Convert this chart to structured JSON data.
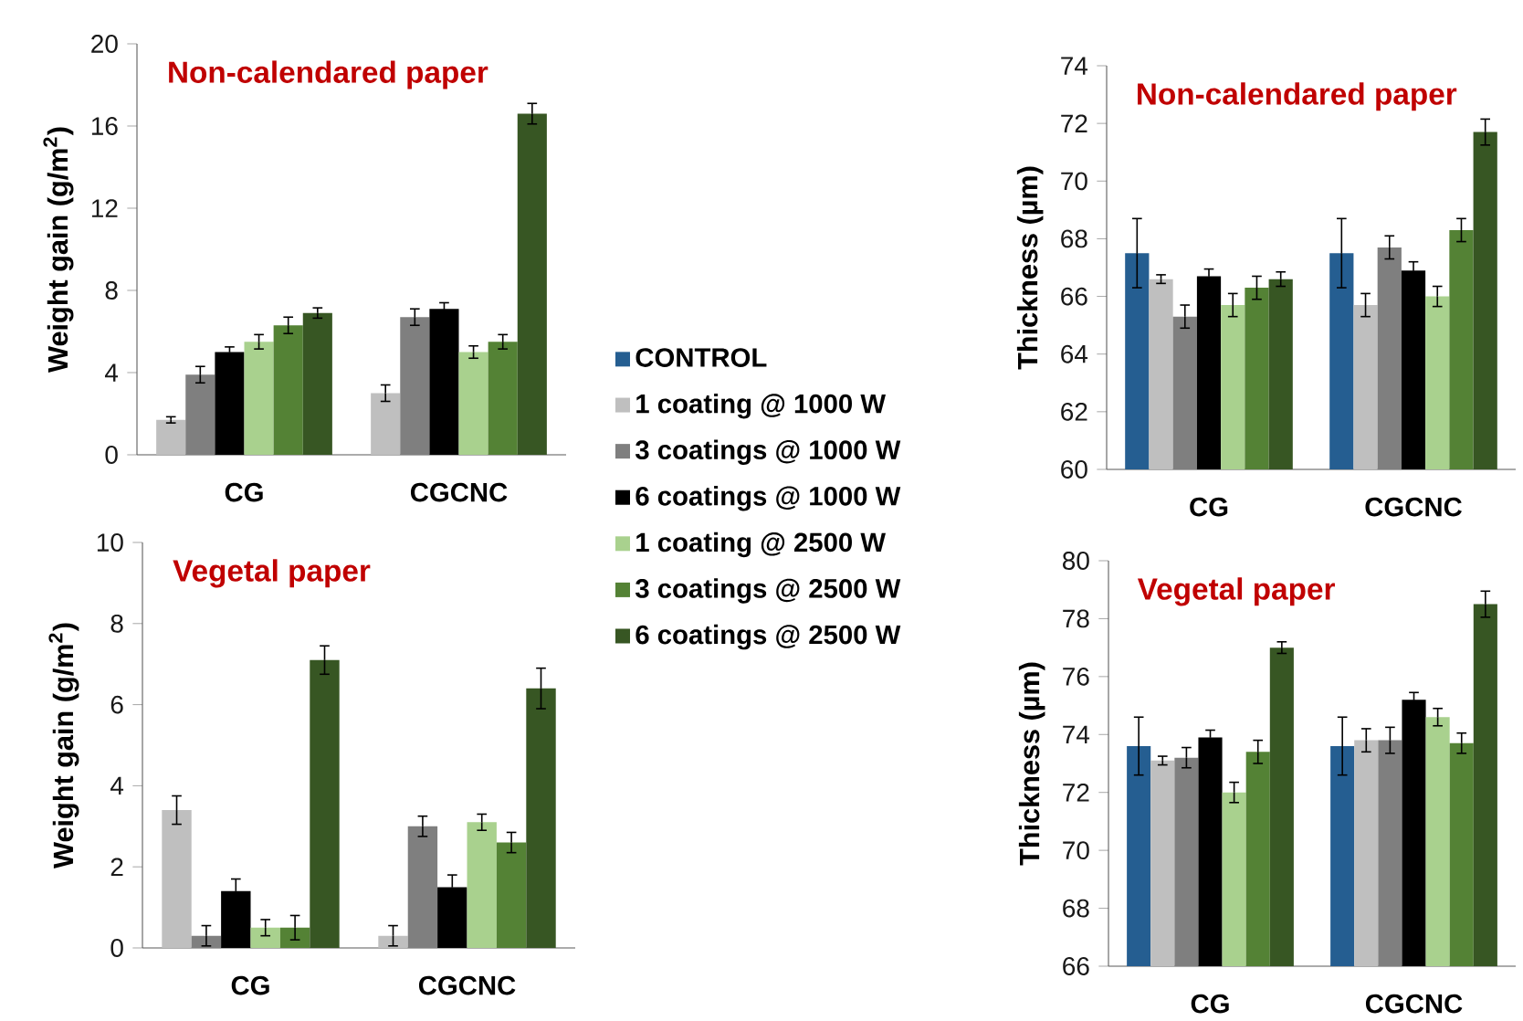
{
  "chart_data": [
    {
      "type": "bar",
      "title": "Non-calendared paper",
      "ylabel": "Weight gain (g/m$^{2}$)",
      "categories": [
        "CG",
        "CGCNC"
      ],
      "ylim": [
        0,
        20
      ],
      "yticks": [
        0,
        4,
        8,
        12,
        16,
        20
      ],
      "series": [
        {
          "color": "#bfbfbf",
          "values": [
            1.7,
            3.0
          ],
          "errors": [
            0.15,
            0.4
          ]
        },
        {
          "color": "#7f7f7f",
          "values": [
            3.9,
            6.7
          ],
          "errors": [
            0.4,
            0.4
          ]
        },
        {
          "color": "#000000",
          "values": [
            5.0,
            7.1
          ],
          "errors": [
            0.25,
            0.3
          ]
        },
        {
          "color": "#a9d18e",
          "values": [
            5.5,
            5.0
          ],
          "errors": [
            0.35,
            0.3
          ]
        },
        {
          "color": "#548235",
          "values": [
            6.3,
            5.5
          ],
          "errors": [
            0.4,
            0.35
          ]
        },
        {
          "color": "#375623",
          "values": [
            6.9,
            16.6
          ],
          "errors": [
            0.25,
            0.5
          ]
        }
      ]
    },
    {
      "type": "bar",
      "title": "Non-calendared paper",
      "ylabel": "Thickness (µm)",
      "categories": [
        "CG",
        "CGCNC"
      ],
      "ylim": [
        60,
        74
      ],
      "yticks": [
        60,
        62,
        64,
        66,
        68,
        70,
        72,
        74
      ],
      "legend": "left",
      "series": [
        {
          "name": "CONTROL",
          "color": "#255e91",
          "values": [
            67.5,
            67.5
          ],
          "errors": [
            1.2,
            1.2
          ]
        },
        {
          "name": "1 coating @ 1000 W",
          "color": "#bfbfbf",
          "values": [
            66.6,
            65.7
          ],
          "errors": [
            0.15,
            0.4
          ]
        },
        {
          "name": "3 coatings @ 1000 W",
          "color": "#7f7f7f",
          "values": [
            65.3,
            67.7
          ],
          "errors": [
            0.4,
            0.4
          ]
        },
        {
          "name": "6 coatings @ 1000 W",
          "color": "#000000",
          "values": [
            66.7,
            66.9
          ],
          "errors": [
            0.25,
            0.3
          ]
        },
        {
          "name": "1 coating @ 2500 W",
          "color": "#a9d18e",
          "values": [
            65.7,
            66.0
          ],
          "errors": [
            0.4,
            0.35
          ]
        },
        {
          "name": "3 coatings @ 2500 W",
          "color": "#548235",
          "values": [
            66.3,
            68.3
          ],
          "errors": [
            0.4,
            0.4
          ]
        },
        {
          "name": "6 coatings @ 2500 W",
          "color": "#375623",
          "values": [
            66.6,
            71.7
          ],
          "errors": [
            0.25,
            0.45
          ]
        }
      ]
    },
    {
      "type": "bar",
      "title": "Vegetal paper",
      "ylabel": "Weight gain (g/m$^{2}$)",
      "categories": [
        "CG",
        "CGCNC"
      ],
      "ylim": [
        0,
        10
      ],
      "yticks": [
        0,
        2,
        4,
        6,
        8,
        10
      ],
      "series": [
        {
          "color": "#bfbfbf",
          "values": [
            3.4,
            0.3
          ],
          "errors": [
            0.35,
            0.25
          ]
        },
        {
          "color": "#7f7f7f",
          "values": [
            0.3,
            3.0
          ],
          "errors": [
            0.25,
            0.25
          ]
        },
        {
          "color": "#000000",
          "values": [
            1.4,
            1.5
          ],
          "errors": [
            0.3,
            0.3
          ]
        },
        {
          "color": "#a9d18e",
          "values": [
            0.5,
            3.1
          ],
          "errors": [
            0.2,
            0.2
          ]
        },
        {
          "color": "#548235",
          "values": [
            0.5,
            2.6
          ],
          "errors": [
            0.3,
            0.25
          ]
        },
        {
          "color": "#375623",
          "values": [
            7.1,
            6.4
          ],
          "errors": [
            0.35,
            0.5
          ]
        }
      ]
    },
    {
      "type": "bar",
      "title": "Vegetal paper",
      "ylabel": "Thickness (µm)",
      "categories": [
        "CG",
        "CGCNC"
      ],
      "ylim": [
        66,
        80
      ],
      "yticks": [
        66,
        68,
        70,
        72,
        74,
        76,
        78,
        80
      ],
      "series": [
        {
          "color": "#255e91",
          "values": [
            73.6,
            73.6
          ],
          "errors": [
            1.0,
            1.0
          ]
        },
        {
          "color": "#bfbfbf",
          "values": [
            73.1,
            73.8
          ],
          "errors": [
            0.15,
            0.4
          ]
        },
        {
          "color": "#7f7f7f",
          "values": [
            73.2,
            73.8
          ],
          "errors": [
            0.35,
            0.45
          ]
        },
        {
          "color": "#000000",
          "values": [
            73.9,
            75.2
          ],
          "errors": [
            0.25,
            0.25
          ]
        },
        {
          "color": "#a9d18e",
          "values": [
            72.0,
            74.6
          ],
          "errors": [
            0.35,
            0.3
          ]
        },
        {
          "color": "#548235",
          "values": [
            73.4,
            73.7
          ],
          "errors": [
            0.4,
            0.35
          ]
        },
        {
          "color": "#375623",
          "values": [
            77.0,
            78.5
          ],
          "errors": [
            0.2,
            0.45
          ]
        }
      ]
    }
  ]
}
